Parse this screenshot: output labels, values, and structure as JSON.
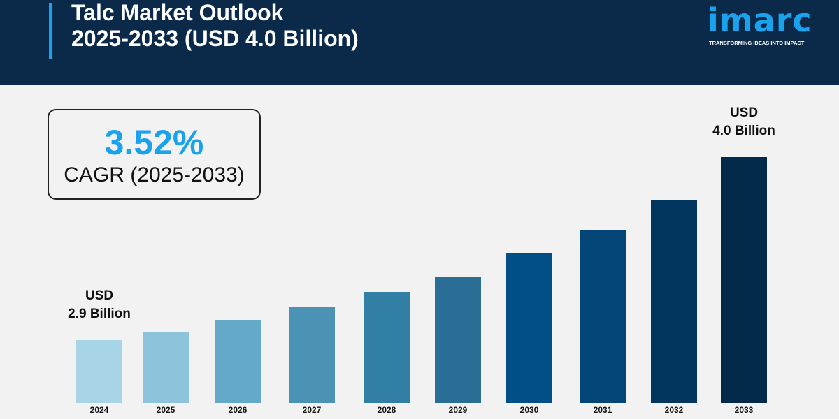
{
  "header": {
    "title_line1": "Talc Market Outlook",
    "title_line2": "2025-2033 (USD 4.0 Billion)"
  },
  "logo": {
    "word": "imarc",
    "tagline": "TRANSFORMING IDEAS INTO IMPACT"
  },
  "cagr": {
    "value": "3.52%",
    "label": "CAGR (2025-2033)"
  },
  "chart_data": {
    "type": "bar",
    "categories": [
      "2024",
      "2025",
      "2026",
      "2027",
      "2028",
      "2029",
      "2030",
      "2031",
      "2032",
      "2033"
    ],
    "values": [
      2.9,
      2.95,
      3.02,
      3.1,
      3.19,
      3.28,
      3.42,
      3.56,
      3.74,
      4.0
    ],
    "colors": [
      "#a8d5e6",
      "#8dc3db",
      "#65a9c8",
      "#4a93b4",
      "#317fa5",
      "#2a6e96",
      "#024f87",
      "#044578",
      "#02365f",
      "#032a4a"
    ],
    "ylim": [
      2.52,
      4.0
    ],
    "grid": false,
    "annotations": [
      {
        "category": "2024",
        "line1": "USD",
        "line2": "2.9 Billion"
      },
      {
        "category": "2033",
        "line1": "USD",
        "line2": "4.0 Billion"
      }
    ]
  }
}
